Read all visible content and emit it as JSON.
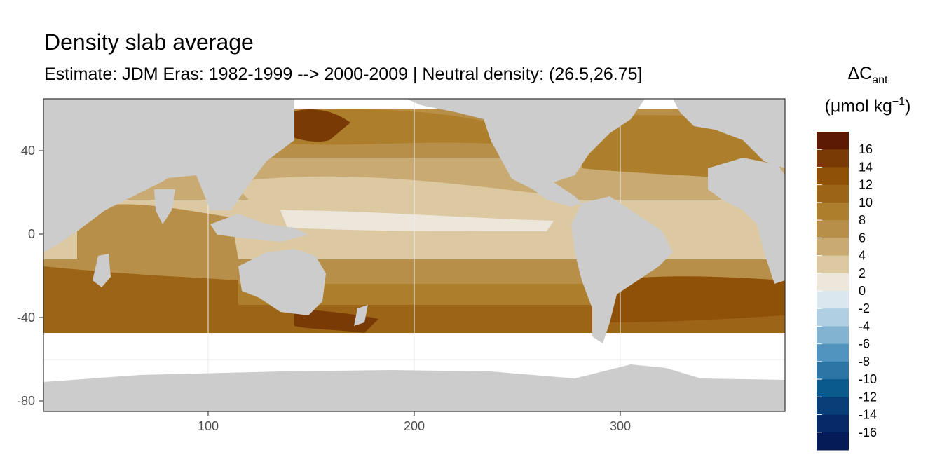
{
  "chart_data": {
    "type": "heatmap",
    "title": "Density slab average",
    "subtitle": "Estimate: JDM Eras: 1982-1999 --> 2000-2009 | Neutral density: (26.5,26.75]",
    "xlabel": "",
    "ylabel": "",
    "xlim": [
      20,
      380
    ],
    "ylim": [
      -85,
      65
    ],
    "x_ticks": [
      100,
      200,
      300
    ],
    "y_ticks": [
      40,
      0,
      -40,
      -80
    ],
    "x_tick_labels": [
      "100",
      "200",
      "300"
    ],
    "y_tick_labels": [
      "40",
      "0",
      "-40",
      "-80"
    ],
    "grid": true,
    "legend": {
      "placement": "right",
      "title_main": "ΔC",
      "title_sub": "ant",
      "title_unit": "(μmol kg",
      "title_exp": "−1",
      "title_close": ")",
      "labels": [
        "16",
        "14",
        "12",
        "10",
        "8",
        "6",
        "4",
        "2",
        "0",
        "-2",
        "-4",
        "-6",
        "-8",
        "-10",
        "-12",
        "-14",
        "-16"
      ],
      "bins": [
        {
          "range": [
            16,
            18
          ],
          "color": "#5c1a03"
        },
        {
          "range": [
            14,
            16
          ],
          "color": "#7a3a06"
        },
        {
          "range": [
            12,
            14
          ],
          "color": "#8f5108"
        },
        {
          "range": [
            10,
            12
          ],
          "color": "#9c6416"
        },
        {
          "range": [
            8,
            10
          ],
          "color": "#ad7f2c"
        },
        {
          "range": [
            6,
            8
          ],
          "color": "#b88f48"
        },
        {
          "range": [
            4,
            6
          ],
          "color": "#c9aa72"
        },
        {
          "range": [
            2,
            4
          ],
          "color": "#dcc9a2"
        },
        {
          "range": [
            0,
            2
          ],
          "color": "#ece6db"
        },
        {
          "range": [
            -2,
            0
          ],
          "color": "#dbe7ef"
        },
        {
          "range": [
            -4,
            -2
          ],
          "color": "#b1cfe2"
        },
        {
          "range": [
            -6,
            -4
          ],
          "color": "#82b3d0"
        },
        {
          "range": [
            -8,
            -6
          ],
          "color": "#5094bf"
        },
        {
          "range": [
            -10,
            -8
          ],
          "color": "#2c76a6"
        },
        {
          "range": [
            -12,
            -10
          ],
          "color": "#0b5a8e"
        },
        {
          "range": [
            -14,
            -12
          ],
          "color": "#083f78"
        },
        {
          "range": [
            -16,
            -14
          ],
          "color": "#062a67"
        },
        {
          "range": [
            -18,
            -16
          ],
          "color": "#041b58"
        }
      ]
    },
    "colors": {
      "land": "#cccccc",
      "no_data": "#ffffff",
      "panel_border": "#333333",
      "grid": "#ebebeb"
    }
  }
}
